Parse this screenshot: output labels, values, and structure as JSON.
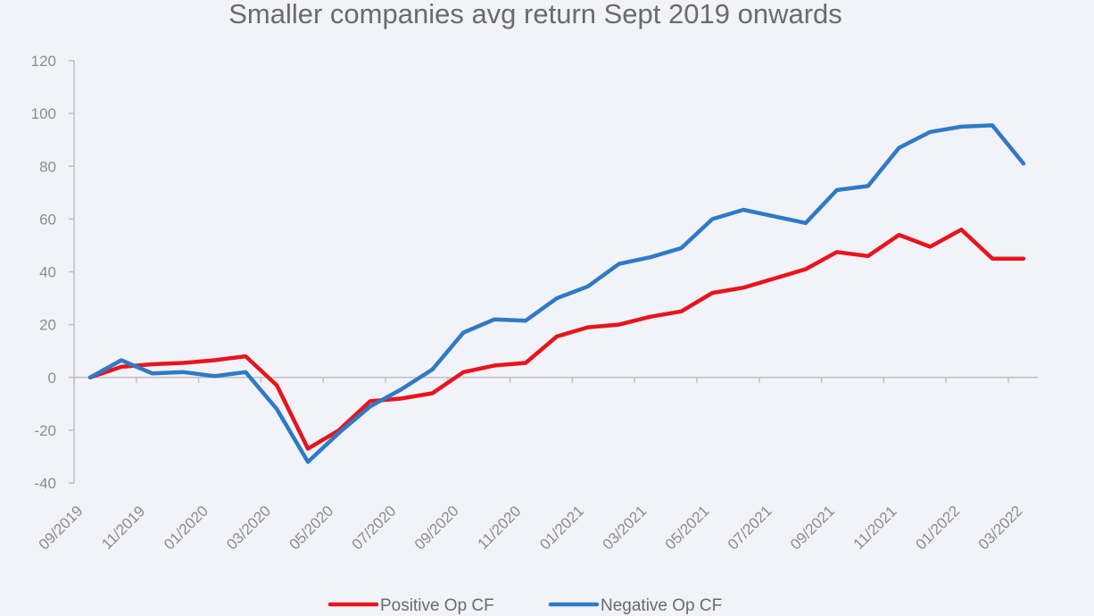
{
  "chart_data": {
    "type": "line",
    "title": "Smaller companies avg return Sept 2019 onwards",
    "xlabel": "",
    "ylabel": "",
    "ylim": [
      -40,
      120
    ],
    "yticks": [
      120,
      100,
      80,
      60,
      40,
      20,
      0,
      -20,
      -40
    ],
    "x": [
      "09/2019",
      "10/2019",
      "11/2019",
      "12/2019",
      "01/2020",
      "02/2020",
      "03/2020",
      "04/2020",
      "05/2020",
      "06/2020",
      "07/2020",
      "08/2020",
      "09/2020",
      "10/2020",
      "11/2020",
      "12/2020",
      "01/2021",
      "02/2021",
      "03/2021",
      "04/2021",
      "05/2021",
      "06/2021",
      "07/2021",
      "08/2021",
      "09/2021",
      "10/2021",
      "11/2021",
      "12/2021",
      "01/2022",
      "02/2022",
      "03/2022"
    ],
    "xtick_labels": [
      "09/2019",
      "11/2019",
      "01/2020",
      "03/2020",
      "05/2020",
      "07/2020",
      "09/2020",
      "11/2020",
      "01/2021",
      "03/2021",
      "05/2021",
      "07/2021",
      "09/2021",
      "11/2021",
      "01/2022",
      "03/2022"
    ],
    "series": [
      {
        "name": "Positive Op CF",
        "color": "#e8141c",
        "values": [
          0,
          4,
          5,
          5.5,
          6.5,
          8,
          -3,
          -27,
          -20,
          -9,
          -8,
          -6,
          2,
          4.5,
          5.5,
          15.5,
          19,
          20,
          23,
          25,
          32,
          34,
          37.5,
          41,
          47.5,
          46,
          54,
          49.5,
          56,
          45,
          45
        ]
      },
      {
        "name": "Negative Op CF",
        "color": "#2f7ac6",
        "values": [
          0,
          6.5,
          1.5,
          2,
          0.5,
          2,
          -12,
          -32,
          -21,
          -11,
          -4.5,
          3,
          17,
          22,
          21.5,
          30,
          34.5,
          43,
          45.5,
          49,
          60,
          63.5,
          61,
          58.5,
          71,
          72.5,
          87,
          93,
          95,
          95.5,
          81
        ]
      }
    ],
    "grid": false,
    "legend_position": "bottom"
  }
}
